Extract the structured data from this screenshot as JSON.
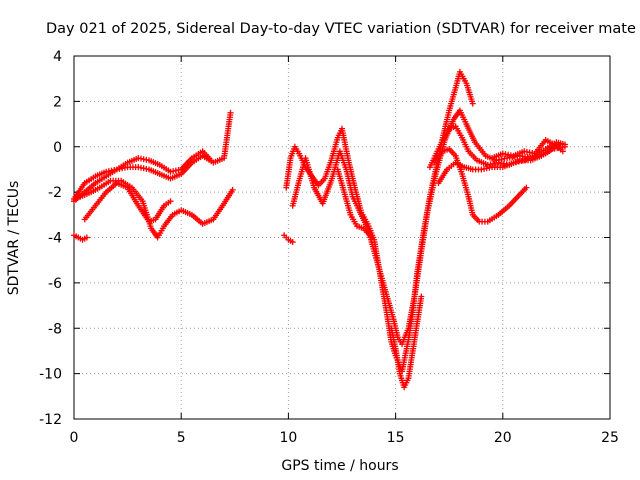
{
  "chart_data": {
    "type": "scatter",
    "title": "Day 021 of 2025, Sidereal Day-to-day VTEC variation (SDTVAR) for receiver mate",
    "xlabel": "GPS time / hours",
    "ylabel": "SDTVAR / TECUs",
    "xlim": [
      0,
      25
    ],
    "ylim": [
      -12,
      4
    ],
    "xticks": [
      0,
      5,
      10,
      15,
      20,
      25
    ],
    "yticks": [
      -12,
      -10,
      -8,
      -6,
      -4,
      -2,
      0,
      2,
      4
    ],
    "xtick_labels": [
      "0",
      "5",
      "10",
      "15",
      "20",
      "25"
    ],
    "ytick_labels": [
      "-12",
      "-10",
      "-8",
      "-6",
      "-4",
      "-2",
      "0",
      "2",
      "4"
    ],
    "grid": true,
    "legend": "none",
    "marker": "+",
    "color": "#ff0000",
    "series": [
      {
        "points": [
          [
            0.0,
            -2.3
          ],
          [
            0.5,
            -1.6
          ],
          [
            1.0,
            -1.3
          ],
          [
            1.5,
            -1.1
          ],
          [
            2.0,
            -1.0
          ],
          [
            2.5,
            -0.9
          ],
          [
            3.0,
            -0.9
          ],
          [
            3.5,
            -1.0
          ],
          [
            4.0,
            -1.2
          ],
          [
            4.5,
            -1.4
          ],
          [
            5.0,
            -1.2
          ],
          [
            5.5,
            -0.7
          ],
          [
            6.0,
            -0.4
          ],
          [
            6.5,
            -0.7
          ],
          [
            7.0,
            -0.5
          ],
          [
            7.3,
            1.5
          ]
        ]
      },
      {
        "points": [
          [
            0.0,
            -2.4
          ],
          [
            0.5,
            -2.0
          ],
          [
            1.0,
            -1.6
          ],
          [
            1.5,
            -1.3
          ],
          [
            2.0,
            -1.0
          ],
          [
            2.5,
            -0.7
          ],
          [
            3.0,
            -0.5
          ],
          [
            3.5,
            -0.6
          ],
          [
            4.0,
            -0.8
          ],
          [
            4.5,
            -1.1
          ],
          [
            5.0,
            -1.0
          ],
          [
            5.5,
            -0.5
          ],
          [
            6.0,
            -0.2
          ],
          [
            6.4,
            -0.6
          ]
        ]
      },
      {
        "points": [
          [
            0.3,
            -2.2
          ],
          [
            0.8,
            -2.0
          ],
          [
            1.2,
            -1.8
          ],
          [
            1.7,
            -1.5
          ],
          [
            2.2,
            -1.5
          ],
          [
            2.7,
            -1.8
          ],
          [
            3.2,
            -2.4
          ],
          [
            3.6,
            -3.6
          ],
          [
            3.9,
            -4.0
          ],
          [
            4.2,
            -3.5
          ],
          [
            4.6,
            -3.0
          ],
          [
            5.0,
            -2.8
          ],
          [
            5.5,
            -3.0
          ],
          [
            6.0,
            -3.4
          ],
          [
            6.5,
            -3.2
          ],
          [
            7.0,
            -2.5
          ],
          [
            7.4,
            -1.9
          ]
        ]
      },
      {
        "points": [
          [
            0.5,
            -3.2
          ],
          [
            1.0,
            -2.6
          ],
          [
            1.5,
            -2.0
          ],
          [
            2.0,
            -1.6
          ],
          [
            2.5,
            -1.8
          ],
          [
            3.0,
            -2.6
          ],
          [
            3.5,
            -3.3
          ],
          [
            3.8,
            -3.2
          ],
          [
            4.2,
            -2.6
          ],
          [
            4.5,
            -2.4
          ]
        ]
      },
      {
        "points": [
          [
            0.0,
            -3.9
          ],
          [
            0.2,
            -4.0
          ],
          [
            0.4,
            -4.1
          ],
          [
            0.6,
            -4.0
          ]
        ]
      },
      {
        "points": [
          [
            9.8,
            -3.9
          ],
          [
            10.0,
            -4.1
          ],
          [
            10.2,
            -4.2
          ]
        ]
      },
      {
        "points": [
          [
            9.9,
            -1.8
          ],
          [
            10.1,
            -0.5
          ],
          [
            10.3,
            0.0
          ],
          [
            10.5,
            -0.3
          ],
          [
            10.8,
            -0.9
          ],
          [
            11.1,
            -1.3
          ],
          [
            11.4,
            -1.7
          ],
          [
            11.7,
            -1.4
          ],
          [
            12.0,
            -0.6
          ],
          [
            12.3,
            0.4
          ],
          [
            12.5,
            0.8
          ],
          [
            12.8,
            -0.6
          ],
          [
            13.1,
            -1.8
          ],
          [
            13.4,
            -2.9
          ],
          [
            13.7,
            -3.4
          ],
          [
            14.0,
            -4.1
          ],
          [
            14.2,
            -5.2
          ],
          [
            14.4,
            -6.3
          ],
          [
            14.6,
            -7.4
          ],
          [
            14.8,
            -8.6
          ],
          [
            15.0,
            -9.2
          ],
          [
            15.3,
            -9.9
          ],
          [
            15.6,
            -8.5
          ],
          [
            15.8,
            -7.3
          ],
          [
            16.0,
            -5.6
          ],
          [
            16.3,
            -3.8
          ],
          [
            16.6,
            -2.2
          ],
          [
            16.9,
            -0.9
          ],
          [
            17.2,
            0.4
          ],
          [
            17.5,
            1.6
          ],
          [
            17.8,
            2.6
          ],
          [
            18.0,
            3.3
          ],
          [
            18.3,
            2.8
          ],
          [
            18.6,
            1.9
          ]
        ]
      },
      {
        "points": [
          [
            10.2,
            -2.6
          ],
          [
            10.5,
            -1.5
          ],
          [
            10.8,
            -0.5
          ],
          [
            11.2,
            -1.8
          ],
          [
            11.6,
            -2.5
          ],
          [
            12.0,
            -1.5
          ],
          [
            12.4,
            -0.2
          ],
          [
            12.7,
            -1.0
          ],
          [
            13.0,
            -2.2
          ],
          [
            13.3,
            -2.8
          ],
          [
            13.7,
            -3.6
          ],
          [
            14.0,
            -4.6
          ],
          [
            14.3,
            -5.6
          ],
          [
            14.6,
            -6.6
          ],
          [
            14.9,
            -7.6
          ],
          [
            15.1,
            -8.4
          ],
          [
            15.3,
            -8.7
          ],
          [
            15.6,
            -8.0
          ],
          [
            15.9,
            -6.5
          ],
          [
            16.2,
            -4.6
          ],
          [
            16.5,
            -2.8
          ],
          [
            16.9,
            -1.1
          ],
          [
            17.3,
            0.3
          ],
          [
            17.7,
            1.2
          ],
          [
            18.0,
            1.6
          ],
          [
            18.3,
            1.0
          ],
          [
            18.7,
            0.2
          ],
          [
            19.2,
            -0.4
          ],
          [
            19.7,
            -0.6
          ],
          [
            20.2,
            -0.5
          ],
          [
            20.8,
            -0.4
          ],
          [
            21.4,
            -0.5
          ],
          [
            22.0,
            -0.3
          ],
          [
            22.6,
            0.1
          ]
        ]
      },
      {
        "points": [
          [
            12.3,
            -1.0
          ],
          [
            12.6,
            -2.0
          ],
          [
            12.9,
            -3.0
          ],
          [
            13.2,
            -3.5
          ],
          [
            13.5,
            -3.6
          ],
          [
            13.9,
            -4.0
          ]
        ]
      },
      {
        "points": [
          [
            14.8,
            -8.0
          ],
          [
            15.0,
            -8.9
          ],
          [
            15.2,
            -10.0
          ],
          [
            15.4,
            -10.6
          ],
          [
            15.6,
            -10.2
          ],
          [
            15.8,
            -9.0
          ],
          [
            16.0,
            -7.8
          ],
          [
            16.2,
            -6.6
          ]
        ]
      },
      {
        "points": [
          [
            16.6,
            -0.9
          ],
          [
            16.9,
            -0.3
          ],
          [
            17.2,
            0.3
          ],
          [
            17.5,
            0.8
          ],
          [
            17.8,
            0.9
          ],
          [
            18.1,
            0.4
          ],
          [
            18.4,
            -0.2
          ],
          [
            18.8,
            -0.6
          ],
          [
            19.3,
            -0.8
          ],
          [
            19.8,
            -0.7
          ],
          [
            20.3,
            -0.8
          ],
          [
            20.8,
            -0.6
          ],
          [
            21.3,
            -0.6
          ],
          [
            21.8,
            -0.4
          ],
          [
            22.3,
            -0.1
          ],
          [
            22.9,
            0.0
          ]
        ]
      },
      {
        "points": [
          [
            16.8,
            -0.7
          ],
          [
            17.2,
            -0.2
          ],
          [
            17.5,
            -0.1
          ],
          [
            17.8,
            -0.4
          ],
          [
            18.1,
            -1.2
          ],
          [
            18.4,
            -2.2
          ],
          [
            18.6,
            -3.0
          ],
          [
            18.9,
            -3.3
          ],
          [
            19.3,
            -3.3
          ],
          [
            19.8,
            -3.0
          ],
          [
            20.3,
            -2.6
          ],
          [
            20.8,
            -2.1
          ],
          [
            21.1,
            -1.8
          ]
        ]
      },
      {
        "points": [
          [
            17.0,
            -1.6
          ],
          [
            17.4,
            -1.0
          ],
          [
            17.8,
            -0.7
          ],
          [
            18.2,
            -0.9
          ],
          [
            18.6,
            -1.0
          ],
          [
            19.0,
            -1.0
          ],
          [
            19.5,
            -0.9
          ],
          [
            20.0,
            -0.9
          ],
          [
            20.5,
            -0.7
          ],
          [
            21.0,
            -0.6
          ],
          [
            21.5,
            -0.4
          ],
          [
            22.0,
            -0.1
          ],
          [
            22.5,
            0.2
          ],
          [
            22.9,
            0.1
          ]
        ]
      },
      {
        "points": [
          [
            19.5,
            -0.5
          ],
          [
            20.0,
            -0.3
          ],
          [
            20.5,
            -0.4
          ],
          [
            21.0,
            -0.2
          ],
          [
            21.5,
            -0.3
          ],
          [
            22.0,
            0.3
          ],
          [
            22.4,
            0.1
          ],
          [
            22.8,
            -0.2
          ]
        ]
      }
    ]
  }
}
